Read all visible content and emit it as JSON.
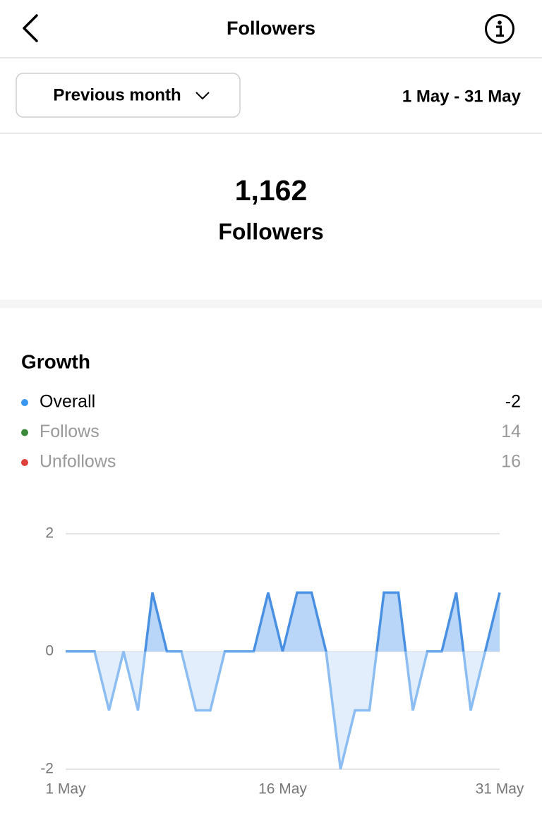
{
  "header": {
    "title": "Followers"
  },
  "filter": {
    "period": "Previous month",
    "date_range": "1 May - 31 May"
  },
  "summary": {
    "count": "1,162",
    "label": "Followers"
  },
  "growth": {
    "title": "Growth",
    "legend": [
      {
        "name": "Overall",
        "color": "#3897f0",
        "value": -2
      },
      {
        "name": "Follows",
        "color": "#3a8a3a",
        "value": 14
      },
      {
        "name": "Unfollows",
        "color": "#e0403a",
        "value": 16
      }
    ]
  },
  "chart_data": {
    "type": "area",
    "categories": [
      "1 May",
      null,
      null,
      null,
      null,
      null,
      null,
      null,
      null,
      null,
      null,
      null,
      null,
      null,
      null,
      "16 May",
      null,
      null,
      null,
      null,
      null,
      null,
      null,
      null,
      null,
      null,
      null,
      null,
      null,
      null,
      "31 May"
    ],
    "series": [
      {
        "name": "Overall",
        "color": "#4a90e2",
        "values": [
          0,
          0,
          0,
          -1,
          0,
          -1,
          1,
          0,
          0,
          -1,
          -1,
          0,
          0,
          0,
          1,
          0,
          1,
          1,
          0,
          -2,
          -1,
          -1,
          1,
          1,
          -1,
          0,
          0,
          1,
          -1,
          0,
          1
        ]
      }
    ],
    "ylim": [
      -2,
      2
    ],
    "yticks": [
      -2,
      0,
      2
    ],
    "grid": true
  }
}
